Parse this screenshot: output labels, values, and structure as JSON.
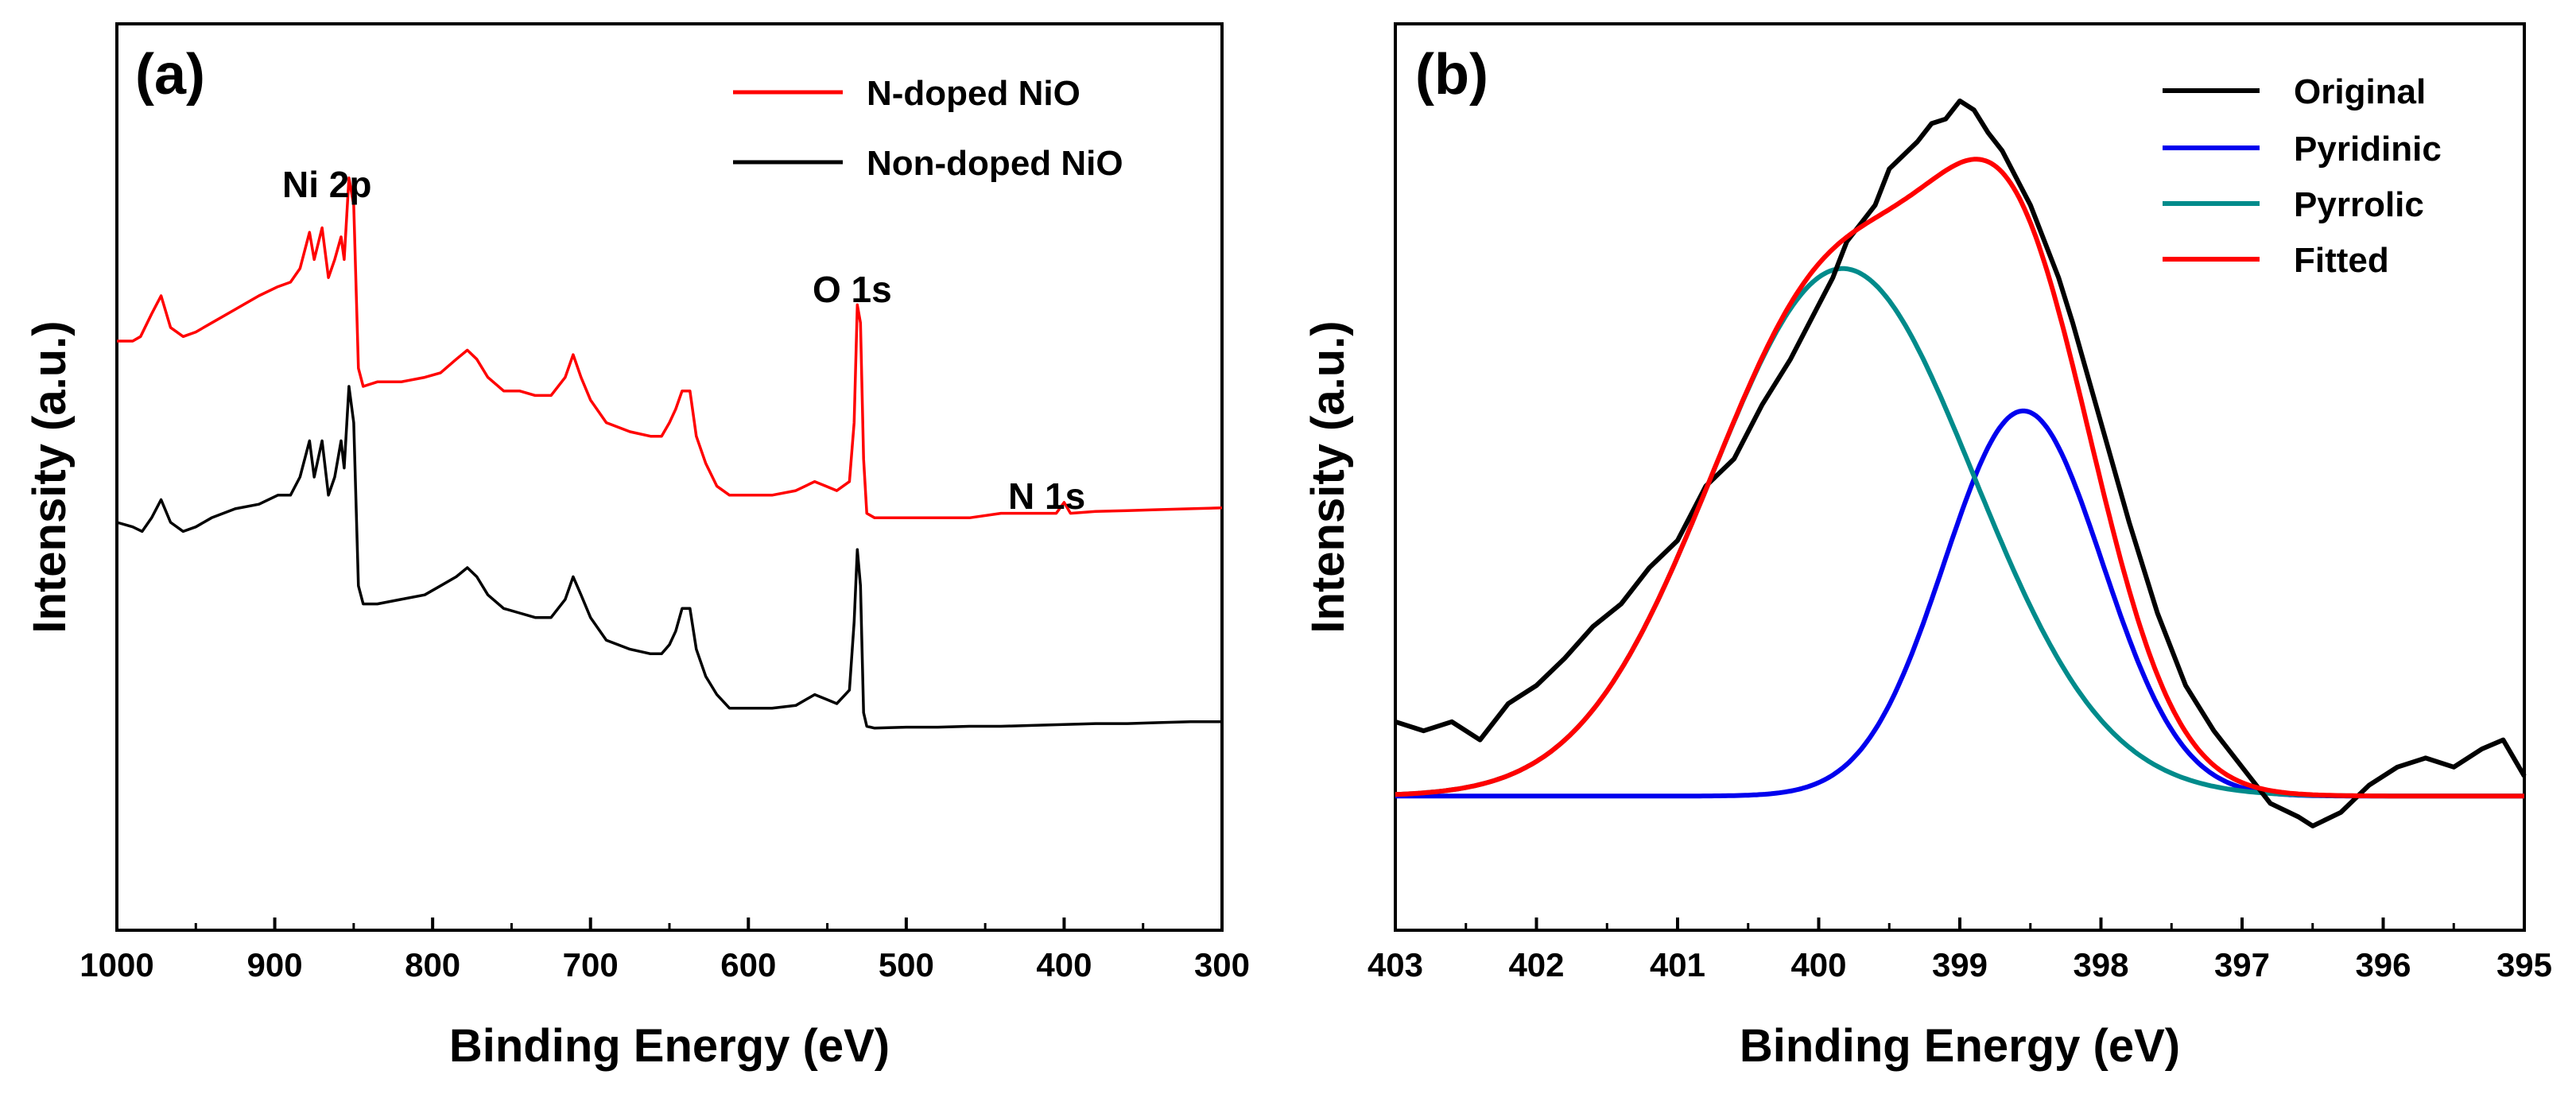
{
  "chart_data": [
    {
      "panel": "(a)",
      "type": "line",
      "xlabel": "Binding Energy (eV)",
      "ylabel": "Intensity (a.u.)",
      "xlim": [
        1000,
        300
      ],
      "ylim": [
        0,
        1
      ],
      "x_ticks": [
        1000,
        900,
        800,
        700,
        600,
        500,
        400,
        300
      ],
      "x_tick_labels": [
        "1000",
        "900",
        "800",
        "700",
        "600",
        "500",
        "400",
        "300"
      ],
      "y_ticks_shown": false,
      "legend": {
        "position": "top-right",
        "entries": [
          {
            "label": "N-doped NiO",
            "color": "#ff0000"
          },
          {
            "label": "Non-doped NiO",
            "color": "#000000"
          }
        ]
      },
      "annotations": [
        {
          "text": "Ni 2p",
          "x": 890,
          "y": 0.79
        },
        {
          "text": "O 1s",
          "x": 535,
          "y": 0.68
        },
        {
          "text": "N 1s",
          "x": 420,
          "y": 0.44
        }
      ],
      "series": [
        {
          "name": "N-doped NiO",
          "color": "#ff0000",
          "points": [
            [
              1000,
              0.65
            ],
            [
              990,
              0.65
            ],
            [
              985,
              0.655
            ],
            [
              978,
              0.68
            ],
            [
              972,
              0.7
            ],
            [
              966,
              0.665
            ],
            [
              958,
              0.655
            ],
            [
              950,
              0.66
            ],
            [
              940,
              0.67
            ],
            [
              925,
              0.685
            ],
            [
              910,
              0.7
            ],
            [
              898,
              0.71
            ],
            [
              890,
              0.715
            ],
            [
              884,
              0.73
            ],
            [
              878,
              0.77
            ],
            [
              875,
              0.74
            ],
            [
              870,
              0.775
            ],
            [
              866,
              0.72
            ],
            [
              862,
              0.74
            ],
            [
              858,
              0.765
            ],
            [
              856,
              0.74
            ],
            [
              853,
              0.83
            ],
            [
              850,
              0.8
            ],
            [
              847,
              0.62
            ],
            [
              844,
              0.6
            ],
            [
              835,
              0.605
            ],
            [
              820,
              0.605
            ],
            [
              805,
              0.61
            ],
            [
              795,
              0.615
            ],
            [
              785,
              0.63
            ],
            [
              778,
              0.64
            ],
            [
              772,
              0.63
            ],
            [
              765,
              0.61
            ],
            [
              755,
              0.595
            ],
            [
              745,
              0.595
            ],
            [
              735,
              0.59
            ],
            [
              725,
              0.59
            ],
            [
              716,
              0.61
            ],
            [
              711,
              0.635
            ],
            [
              706,
              0.61
            ],
            [
              700,
              0.585
            ],
            [
              690,
              0.56
            ],
            [
              675,
              0.55
            ],
            [
              662,
              0.545
            ],
            [
              655,
              0.545
            ],
            [
              650,
              0.56
            ],
            [
              646,
              0.575
            ],
            [
              642,
              0.595
            ],
            [
              637,
              0.595
            ],
            [
              633,
              0.545
            ],
            [
              627,
              0.515
            ],
            [
              620,
              0.49
            ],
            [
              612,
              0.48
            ],
            [
              600,
              0.48
            ],
            [
              585,
              0.48
            ],
            [
              570,
              0.485
            ],
            [
              558,
              0.495
            ],
            [
              551,
              0.49
            ],
            [
              544,
              0.485
            ],
            [
              536,
              0.495
            ],
            [
              533,
              0.56
            ],
            [
              531,
              0.69
            ],
            [
              529,
              0.67
            ],
            [
              527,
              0.52
            ],
            [
              525,
              0.46
            ],
            [
              520,
              0.455
            ],
            [
              500,
              0.455
            ],
            [
              480,
              0.455
            ],
            [
              460,
              0.455
            ],
            [
              440,
              0.46
            ],
            [
              420,
              0.46
            ],
            [
              405,
              0.46
            ],
            [
              400,
              0.472
            ],
            [
              396,
              0.46
            ],
            [
              380,
              0.462
            ],
            [
              360,
              0.463
            ],
            [
              340,
              0.464
            ],
            [
              320,
              0.465
            ],
            [
              300,
              0.466
            ]
          ]
        },
        {
          "name": "Non-doped NiO",
          "color": "#000000",
          "points": [
            [
              1000,
              0.45
            ],
            [
              990,
              0.445
            ],
            [
              984,
              0.44
            ],
            [
              978,
              0.455
            ],
            [
              972,
              0.475
            ],
            [
              966,
              0.45
            ],
            [
              958,
              0.44
            ],
            [
              950,
              0.445
            ],
            [
              940,
              0.455
            ],
            [
              925,
              0.465
            ],
            [
              910,
              0.47
            ],
            [
              898,
              0.48
            ],
            [
              890,
              0.48
            ],
            [
              884,
              0.5
            ],
            [
              878,
              0.54
            ],
            [
              875,
              0.5
            ],
            [
              870,
              0.54
            ],
            [
              866,
              0.48
            ],
            [
              862,
              0.5
            ],
            [
              858,
              0.54
            ],
            [
              856,
              0.51
            ],
            [
              853,
              0.6
            ],
            [
              850,
              0.56
            ],
            [
              847,
              0.38
            ],
            [
              844,
              0.36
            ],
            [
              835,
              0.36
            ],
            [
              820,
              0.365
            ],
            [
              805,
              0.37
            ],
            [
              795,
              0.38
            ],
            [
              785,
              0.39
            ],
            [
              778,
              0.4
            ],
            [
              772,
              0.39
            ],
            [
              765,
              0.37
            ],
            [
              755,
              0.355
            ],
            [
              745,
              0.35
            ],
            [
              735,
              0.345
            ],
            [
              725,
              0.345
            ],
            [
              716,
              0.365
            ],
            [
              711,
              0.39
            ],
            [
              706,
              0.37
            ],
            [
              700,
              0.345
            ],
            [
              690,
              0.32
            ],
            [
              675,
              0.31
            ],
            [
              662,
              0.305
            ],
            [
              655,
              0.305
            ],
            [
              650,
              0.315
            ],
            [
              646,
              0.33
            ],
            [
              642,
              0.355
            ],
            [
              637,
              0.355
            ],
            [
              633,
              0.31
            ],
            [
              627,
              0.28
            ],
            [
              620,
              0.26
            ],
            [
              612,
              0.245
            ],
            [
              600,
              0.245
            ],
            [
              585,
              0.245
            ],
            [
              570,
              0.248
            ],
            [
              558,
              0.26
            ],
            [
              551,
              0.255
            ],
            [
              544,
              0.25
            ],
            [
              536,
              0.265
            ],
            [
              533,
              0.34
            ],
            [
              531,
              0.42
            ],
            [
              529,
              0.38
            ],
            [
              527,
              0.24
            ],
            [
              525,
              0.225
            ],
            [
              520,
              0.223
            ],
            [
              500,
              0.224
            ],
            [
              480,
              0.224
            ],
            [
              460,
              0.225
            ],
            [
              440,
              0.225
            ],
            [
              420,
              0.226
            ],
            [
              400,
              0.227
            ],
            [
              380,
              0.228
            ],
            [
              360,
              0.228
            ],
            [
              340,
              0.229
            ],
            [
              320,
              0.23
            ],
            [
              300,
              0.23
            ]
          ]
        }
      ]
    },
    {
      "panel": "(b)",
      "type": "line",
      "xlabel": "Binding Energy (eV)",
      "ylabel": "Intensity (a.u.)",
      "xlim": [
        403,
        395
      ],
      "ylim": [
        0,
        1
      ],
      "x_ticks": [
        403,
        402,
        401,
        400,
        399,
        398,
        397,
        396,
        395
      ],
      "x_tick_labels": [
        "403",
        "402",
        "401",
        "400",
        "399",
        "398",
        "397",
        "396",
        "395"
      ],
      "y_ticks_shown": false,
      "legend": {
        "position": "top-right",
        "entries": [
          {
            "label": "Original",
            "color": "#000000"
          },
          {
            "label": "Pyridinic",
            "color": "#0000ee"
          },
          {
            "label": "Pyrrolic",
            "color": "#008b8b"
          },
          {
            "label": "Fitted",
            "color": "#ff0000"
          }
        ]
      },
      "components": {
        "baseline": 0.148,
        "Pyridinic": {
          "center": 398.55,
          "height": 0.425,
          "sigma": 0.56
        },
        "Pyrrolic": {
          "center": 399.83,
          "height": 0.582,
          "sigma": 0.93
        }
      },
      "series": [
        {
          "name": "Original",
          "color": "#000000",
          "points": [
            [
              403,
              0.23
            ],
            [
              402.8,
              0.22
            ],
            [
              402.6,
              0.23
            ],
            [
              402.4,
              0.21
            ],
            [
              402.2,
              0.25
            ],
            [
              402.0,
              0.27
            ],
            [
              401.8,
              0.3
            ],
            [
              401.6,
              0.335
            ],
            [
              401.4,
              0.36
            ],
            [
              401.2,
              0.4
            ],
            [
              401.0,
              0.43
            ],
            [
              400.8,
              0.49
            ],
            [
              400.6,
              0.52
            ],
            [
              400.4,
              0.58
            ],
            [
              400.2,
              0.63
            ],
            [
              400.0,
              0.69
            ],
            [
              399.9,
              0.72
            ],
            [
              399.8,
              0.76
            ],
            [
              399.7,
              0.78
            ],
            [
              399.6,
              0.8
            ],
            [
              399.5,
              0.84
            ],
            [
              399.4,
              0.855
            ],
            [
              399.3,
              0.87
            ],
            [
              399.2,
              0.89
            ],
            [
              399.1,
              0.895
            ],
            [
              399.0,
              0.915
            ],
            [
              398.9,
              0.905
            ],
            [
              398.8,
              0.88
            ],
            [
              398.7,
              0.86
            ],
            [
              398.6,
              0.83
            ],
            [
              398.5,
              0.8
            ],
            [
              398.4,
              0.76
            ],
            [
              398.3,
              0.72
            ],
            [
              398.2,
              0.67
            ],
            [
              398.0,
              0.56
            ],
            [
              397.8,
              0.45
            ],
            [
              397.6,
              0.35
            ],
            [
              397.4,
              0.27
            ],
            [
              397.2,
              0.22
            ],
            [
              397.0,
              0.18
            ],
            [
              396.8,
              0.14
            ],
            [
              396.6,
              0.125
            ],
            [
              396.5,
              0.115
            ],
            [
              396.3,
              0.13
            ],
            [
              396.1,
              0.16
            ],
            [
              395.9,
              0.18
            ],
            [
              395.7,
              0.19
            ],
            [
              395.5,
              0.18
            ],
            [
              395.3,
              0.2
            ],
            [
              395.15,
              0.21
            ],
            [
              395.0,
              0.17
            ]
          ]
        },
        {
          "name": "Pyridinic",
          "color": "#0000ee",
          "model": "gaussian"
        },
        {
          "name": "Pyrrolic",
          "color": "#008b8b",
          "model": "gaussian"
        },
        {
          "name": "Fitted",
          "color": "#ff0000",
          "model": "sum"
        }
      ]
    }
  ]
}
